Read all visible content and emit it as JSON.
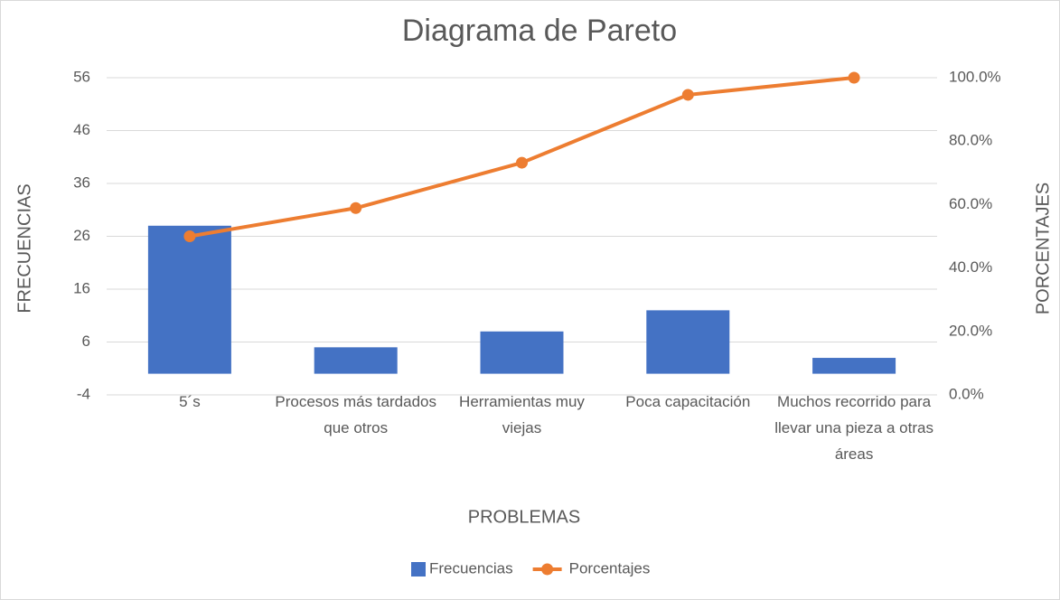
{
  "chart_data": {
    "type": "bar-line",
    "title": "Diagrama de Pareto",
    "x_label": "PROBLEMAS",
    "y_label": "FRECUENCIAS",
    "y2_label": "PORCENTAJES",
    "categories": [
      "5´s",
      "Procesos más tardados que otros",
      "Herramientas muy viejas",
      "Poca capacitación",
      "Muchos recorrido para llevar una pieza a otras áreas"
    ],
    "series": [
      {
        "name": "Frecuencias",
        "type": "bar",
        "color": "#4472c4",
        "values": [
          28,
          5,
          8,
          12,
          3
        ]
      },
      {
        "name": "Porcentajes",
        "type": "line",
        "axis": "y2",
        "color": "#ed7d31",
        "values": [
          50,
          58.9,
          73.2,
          94.6,
          100
        ]
      }
    ],
    "ylim": [
      -4,
      56
    ],
    "yticks": [
      -4,
      6,
      16,
      26,
      36,
      46,
      56
    ],
    "y2lim": [
      0,
      100
    ],
    "y2ticks": [
      {
        "value": 0,
        "label": "0.0%"
      },
      {
        "value": 20,
        "label": "20.0%"
      },
      {
        "value": 40,
        "label": "40.0%"
      },
      {
        "value": 60,
        "label": "60.0%"
      },
      {
        "value": 80,
        "label": "80.0%"
      },
      {
        "value": 100,
        "label": "100.0%"
      }
    ],
    "grid": true,
    "legend": "bottom"
  }
}
